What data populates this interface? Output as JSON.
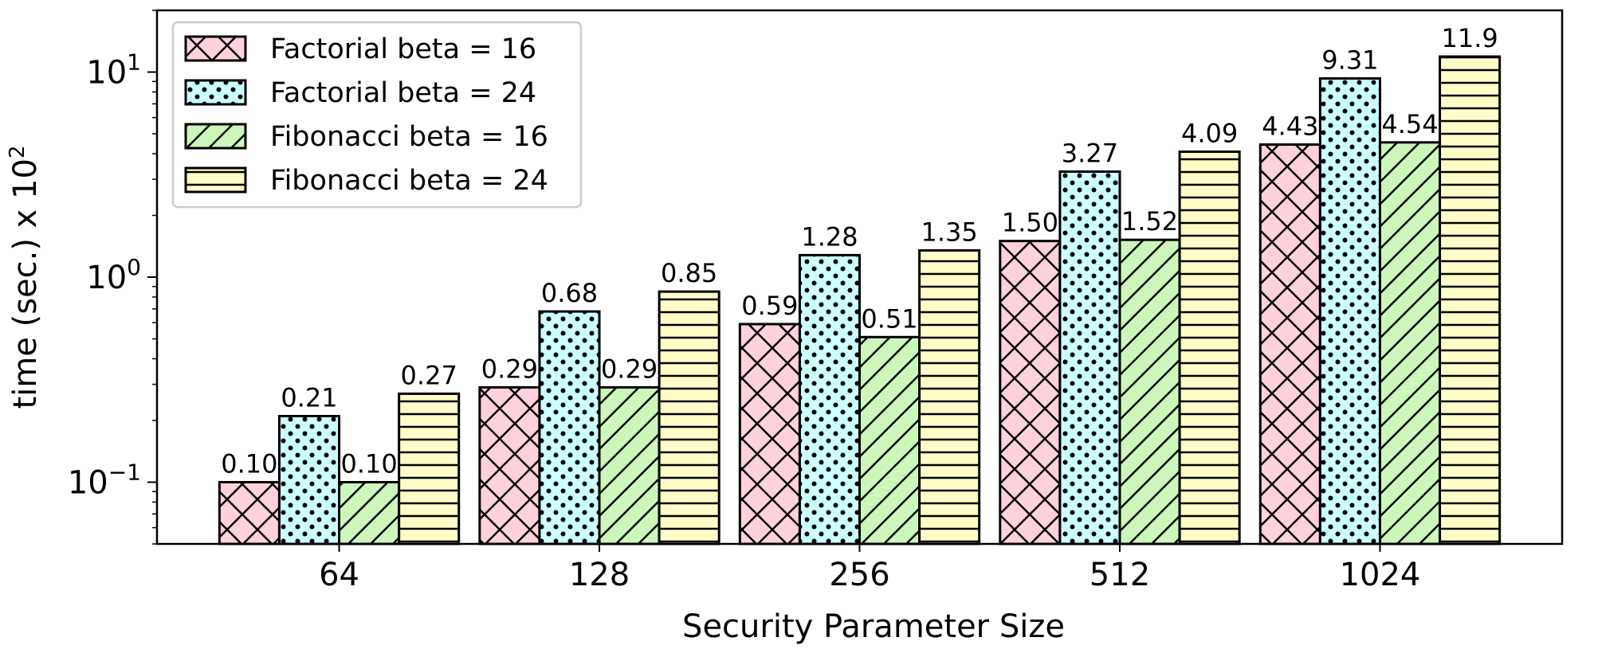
{
  "chart_data": {
    "type": "bar",
    "xlabel": "Security Parameter Size",
    "ylabel": "time (sec.) x 10",
    "ylabel_superscript": "2",
    "y_scale": "log",
    "ylim": [
      0.05,
      20
    ],
    "categories": [
      "64",
      "128",
      "256",
      "512",
      "1024"
    ],
    "y_ticks": [
      {
        "value": 0.1,
        "base": "10",
        "exp": "−1"
      },
      {
        "value": 1,
        "base": "10",
        "exp": "0"
      },
      {
        "value": 10,
        "base": "10",
        "exp": "1"
      }
    ],
    "legend_position": "top-left",
    "grid": false,
    "series": [
      {
        "name": "Factorial beta = 16",
        "color": "#ffd1dc",
        "pattern": "crosshatch",
        "values": [
          0.1,
          0.29,
          0.59,
          1.5,
          4.43
        ],
        "labels": [
          "0.10",
          "0.29",
          "0.59",
          "1.50",
          "4.43"
        ]
      },
      {
        "name": "Factorial beta = 24",
        "color": "#ccffff",
        "pattern": "dots",
        "values": [
          0.21,
          0.68,
          1.28,
          3.27,
          9.31
        ],
        "labels": [
          "0.21",
          "0.68",
          "1.28",
          "3.27",
          "9.31"
        ]
      },
      {
        "name": "Fibonacci beta = 16",
        "color": "#ccf7bb",
        "pattern": "diagonal",
        "values": [
          0.1,
          0.29,
          0.51,
          1.52,
          4.54
        ],
        "labels": [
          "0.10",
          "0.29",
          "0.51",
          "1.52",
          "4.54"
        ]
      },
      {
        "name": "Fibonacci beta = 24",
        "color": "#fffcc8",
        "pattern": "horizontal",
        "values": [
          0.27,
          0.85,
          1.35,
          4.09,
          11.9
        ],
        "labels": [
          "0.27",
          "0.85",
          "1.35",
          "4.09",
          "11.9"
        ]
      }
    ]
  }
}
